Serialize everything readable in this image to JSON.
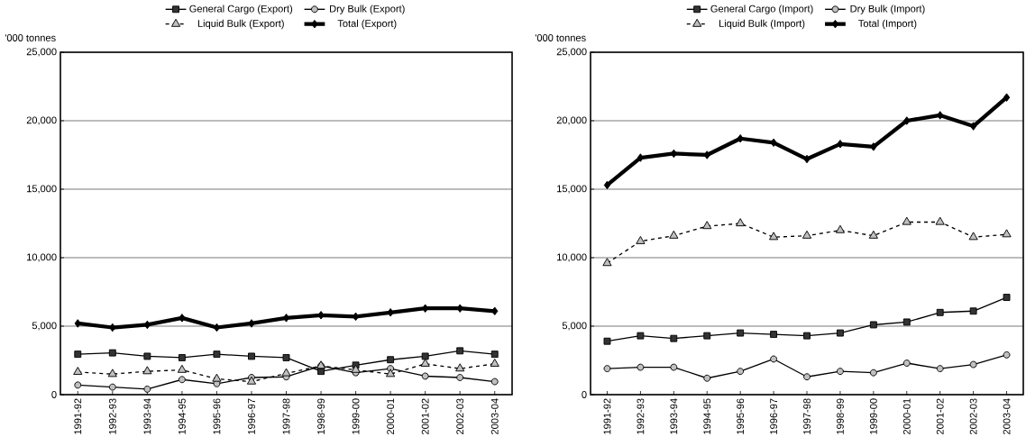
{
  "chart_data": [
    {
      "type": "line",
      "ylabel": "'000 tonnes",
      "grid": "y",
      "legend": "top",
      "ylim": [
        0,
        25000
      ],
      "yticks": [
        0,
        {
          "value": 5000,
          "label": "5,000"
        },
        {
          "value": 10000,
          "label": "10,000"
        },
        {
          "value": 15000,
          "label": "15,000"
        },
        {
          "value": 20000,
          "label": "20,000"
        },
        {
          "value": 25000,
          "label": "25,000"
        }
      ],
      "categories": [
        "1991-92",
        "1992-93",
        "1993-94",
        "1994-95",
        "1995-96",
        "1996-97",
        "1997-98",
        "1998-99",
        "1999-00",
        "2000-01",
        "2001-02",
        "2002-03",
        "2003-04"
      ],
      "series": [
        {
          "name": "General Cargo (Export)",
          "color": "#333333",
          "marker": "square",
          "line_style": "solid",
          "values": [
            2950,
            3050,
            2800,
            2700,
            2950,
            2800,
            2700,
            1700,
            2150,
            2550,
            2800,
            3200,
            2950
          ]
        },
        {
          "name": "Dry Bulk (Export)",
          "color": "#c0c0c0",
          "marker": "circle",
          "line_style": "solid",
          "values": [
            700,
            550,
            400,
            1100,
            800,
            1250,
            1300,
            2100,
            1600,
            1900,
            1350,
            1250,
            950
          ]
        },
        {
          "name": "Liquid Bulk (Export)",
          "color": "#c0c0c0",
          "marker": "triangle",
          "line_style": "dashed",
          "values": [
            1650,
            1500,
            1700,
            1800,
            1150,
            950,
            1550,
            2100,
            1800,
            1500,
            2250,
            1900,
            2250
          ]
        },
        {
          "name": "Total (Export)",
          "color": "#000000",
          "marker": "diamond",
          "line_style": "solid",
          "values": [
            5200,
            4900,
            5100,
            5600,
            4900,
            5200,
            5600,
            5800,
            5700,
            6000,
            6300,
            6300,
            6100
          ]
        }
      ]
    },
    {
      "type": "line",
      "ylabel": "'000 tonnes",
      "grid": "y",
      "legend": "top",
      "ylim": [
        0,
        25000
      ],
      "yticks": [
        0,
        {
          "value": 5000,
          "label": "5,000"
        },
        {
          "value": 10000,
          "label": "10,000"
        },
        {
          "value": 15000,
          "label": "15,000"
        },
        {
          "value": 20000,
          "label": "20,000"
        },
        {
          "value": 25000,
          "label": "25,000"
        }
      ],
      "categories": [
        "1991-92",
        "1992-93",
        "1993-94",
        "1994-95",
        "1995-96",
        "1996-97",
        "1997-98",
        "1998-99",
        "1999-00",
        "2000-01",
        "2001-02",
        "2002-03",
        "2003-04"
      ],
      "series": [
        {
          "name": "General Cargo (Import)",
          "color": "#333333",
          "marker": "square",
          "line_style": "solid",
          "values": [
            3900,
            4300,
            4100,
            4300,
            4500,
            4400,
            4300,
            4500,
            5100,
            5300,
            6000,
            6100,
            7100
          ]
        },
        {
          "name": "Dry Bulk (Import)",
          "color": "#c0c0c0",
          "marker": "circle",
          "line_style": "solid",
          "values": [
            1900,
            2000,
            2000,
            1200,
            1700,
            2600,
            1300,
            1700,
            1600,
            2300,
            1900,
            2200,
            2900
          ]
        },
        {
          "name": "Liquid Bulk (Import)",
          "color": "#c0c0c0",
          "marker": "triangle",
          "line_style": "dashed",
          "values": [
            9600,
            11200,
            11600,
            12300,
            12500,
            11500,
            11600,
            12000,
            11600,
            12600,
            12600,
            11500,
            11700
          ]
        },
        {
          "name": "Total (Import)",
          "color": "#000000",
          "marker": "diamond",
          "line_style": "solid",
          "values": [
            15300,
            17300,
            17600,
            17500,
            18700,
            18400,
            17200,
            18300,
            18100,
            20000,
            20400,
            19600,
            21700
          ]
        }
      ]
    }
  ]
}
